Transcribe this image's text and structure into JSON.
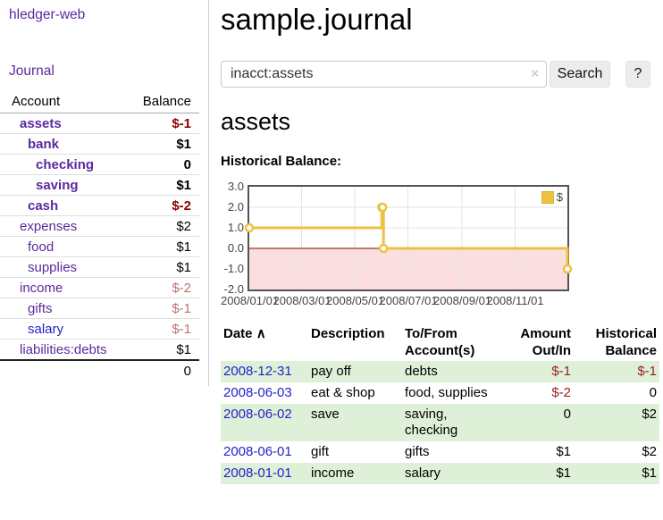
{
  "sidebar": {
    "brand": "hledger-web",
    "journal_link": "Journal",
    "accounts_table": {
      "headers": {
        "account": "Account",
        "balance": "Balance"
      },
      "rows": [
        {
          "account": "assets",
          "balance": "$-1",
          "indent": 1,
          "bold": true
        },
        {
          "account": "bank",
          "balance": "$1",
          "indent": 2,
          "bold": true
        },
        {
          "account": "checking",
          "balance": "0",
          "indent": 3,
          "bold": true
        },
        {
          "account": "saving",
          "balance": "$1",
          "indent": 3,
          "bold": true
        },
        {
          "account": "cash",
          "balance": "$-2",
          "indent": 2,
          "bold": true
        },
        {
          "account": "expenses",
          "balance": "$2",
          "indent": 1,
          "bold": false
        },
        {
          "account": "food",
          "balance": "$1",
          "indent": 2,
          "bold": false
        },
        {
          "account": "supplies",
          "balance": "$1",
          "indent": 2,
          "bold": false
        },
        {
          "account": "income",
          "balance": "$-2",
          "indent": 1,
          "bold": false
        },
        {
          "account": "gifts",
          "balance": "$-1",
          "indent": 2,
          "bold": false
        },
        {
          "account": "salary",
          "balance": "$-1",
          "indent": 2,
          "bold": false,
          "unvisited": true
        },
        {
          "account": "liabilities:debts",
          "balance": "$1",
          "indent": 1,
          "bold": false
        }
      ],
      "total": "0"
    }
  },
  "header": {
    "title": "sample.journal"
  },
  "search": {
    "value": "inacct:assets",
    "clear_icon": "×",
    "search_button": "Search",
    "help_button": "?"
  },
  "account_page": {
    "title": "assets",
    "chart_heading": "Historical Balance:"
  },
  "chart_data": {
    "type": "line",
    "step": true,
    "title": "Historical Balance",
    "series": [
      {
        "name": "$",
        "color": "#edc240",
        "points": [
          [
            "2008-01-01",
            1
          ],
          [
            "2008-06-01",
            2
          ],
          [
            "2008-06-02",
            2
          ],
          [
            "2008-06-03",
            0
          ],
          [
            "2008-12-31",
            -1
          ]
        ]
      }
    ],
    "x_range": [
      "2008-01-01",
      "2008-12-31"
    ],
    "xtick_labels": [
      "2008/01/01",
      "2008/03/01",
      "2008/05/01",
      "2008/07/01",
      "2008/09/01",
      "2008/11/01"
    ],
    "ylim": [
      -2,
      3
    ],
    "ytick_labels": [
      "3.0",
      "2.0",
      "1.0",
      "0.0",
      "-1.0",
      "-2.0"
    ],
    "grid": true,
    "legend_position": "top-right",
    "zero_line_color": "#8b0000",
    "negative_region_color": "#fbdfe0"
  },
  "register_table": {
    "headers": {
      "date": "Date",
      "sort_indicator": "∧",
      "description": "Description",
      "accounts": "To/From Account(s)",
      "amount": "Amount Out/In",
      "balance": "Historical Balance"
    },
    "rows": [
      {
        "date": "2008-12-31",
        "description": "pay off",
        "accounts": "debts",
        "amount": "$-1",
        "balance": "$-1"
      },
      {
        "date": "2008-06-03",
        "description": "eat & shop",
        "accounts": "food, supplies",
        "amount": "$-2",
        "balance": "0"
      },
      {
        "date": "2008-06-02",
        "description": "save",
        "accounts": "saving, checking",
        "amount": "0",
        "balance": "$2"
      },
      {
        "date": "2008-06-01",
        "description": "gift",
        "accounts": "gifts",
        "amount": "$1",
        "balance": "$2"
      },
      {
        "date": "2008-01-01",
        "description": "income",
        "accounts": "salary",
        "amount": "$1",
        "balance": "$1"
      }
    ]
  }
}
